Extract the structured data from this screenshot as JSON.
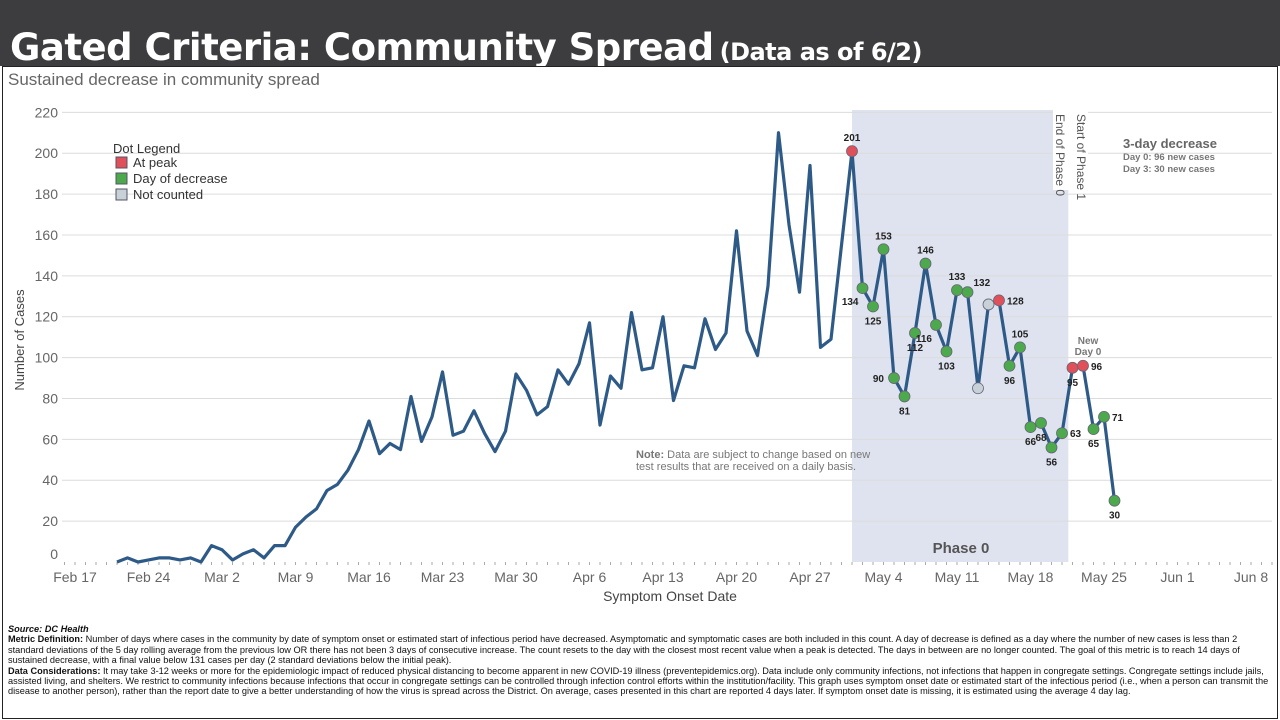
{
  "header": {
    "title": "Gated Criteria: Community Spread",
    "subtitle": "(Data as of 6/2)"
  },
  "chart_data": {
    "type": "line",
    "title": "Sustained decrease in community spread",
    "xlabel": "Symptom Onset Date",
    "ylabel": "Number of Cases",
    "ylim": [
      0,
      220
    ],
    "yticks": [
      0,
      20,
      40,
      60,
      80,
      100,
      120,
      140,
      160,
      180,
      200,
      220
    ],
    "start_date": "Feb 21",
    "xticks": [
      {
        "day": -4,
        "label": "Feb 17"
      },
      {
        "day": 3,
        "label": "Feb 24"
      },
      {
        "day": 10,
        "label": "Mar 2"
      },
      {
        "day": 17,
        "label": "Mar 9"
      },
      {
        "day": 24,
        "label": "Mar 16"
      },
      {
        "day": 31,
        "label": "Mar 23"
      },
      {
        "day": 38,
        "label": "Mar 30"
      },
      {
        "day": 45,
        "label": "Apr 6"
      },
      {
        "day": 52,
        "label": "Apr 13"
      },
      {
        "day": 59,
        "label": "Apr 20"
      },
      {
        "day": 66,
        "label": "Apr 27"
      },
      {
        "day": 73,
        "label": "May 4"
      },
      {
        "day": 80,
        "label": "May 11"
      },
      {
        "day": 87,
        "label": "May 18"
      },
      {
        "day": 94,
        "label": "May 25"
      },
      {
        "day": 101,
        "label": "Jun 1"
      },
      {
        "day": 108,
        "label": "Jun 8"
      }
    ],
    "grid": true,
    "series": [
      {
        "name": "Daily cases",
        "color": "#2e5a88",
        "values": [
          0,
          2,
          0,
          1,
          2,
          2,
          1,
          2,
          0,
          8,
          6,
          1,
          4,
          6,
          2,
          8,
          8,
          17,
          22,
          26,
          35,
          38,
          45,
          55,
          69,
          53,
          58,
          55,
          81,
          59,
          71,
          93,
          62,
          64,
          74,
          63,
          54,
          64,
          92,
          84,
          72,
          76,
          94,
          87,
          97,
          117,
          67,
          91,
          85,
          122,
          94,
          95,
          120,
          79,
          96,
          95,
          119,
          104,
          112,
          162,
          113,
          101,
          135,
          210,
          165,
          132,
          194,
          105,
          109,
          155,
          201,
          134,
          125,
          153,
          90,
          81,
          112,
          146,
          116,
          103,
          133,
          132,
          85,
          126,
          128,
          96,
          105,
          66,
          68,
          56,
          63,
          95,
          96,
          65,
          71,
          30
        ]
      }
    ],
    "markers": [
      {
        "day": 70,
        "value": 201,
        "type": "peak",
        "label": "201",
        "pos": "above"
      },
      {
        "day": 71,
        "value": 134,
        "type": "decrease",
        "label": "134",
        "pos": "belowleft"
      },
      {
        "day": 72,
        "value": 125,
        "type": "decrease",
        "label": "125",
        "pos": "below"
      },
      {
        "day": 73,
        "value": 153,
        "type": "decrease",
        "label": "153",
        "pos": "above"
      },
      {
        "day": 74,
        "value": 90,
        "type": "decrease",
        "label": "90",
        "pos": "left"
      },
      {
        "day": 75,
        "value": 81,
        "type": "decrease",
        "label": "81",
        "pos": "below"
      },
      {
        "day": 76,
        "value": 112,
        "type": "decrease",
        "label": "112",
        "pos": "below"
      },
      {
        "day": 77,
        "value": 146,
        "type": "decrease",
        "label": "146",
        "pos": "above"
      },
      {
        "day": 78,
        "value": 116,
        "type": "decrease",
        "label": "116",
        "pos": "belowleft"
      },
      {
        "day": 79,
        "value": 103,
        "type": "decrease",
        "label": "103",
        "pos": "below"
      },
      {
        "day": 80,
        "value": 133,
        "type": "decrease",
        "label": "133",
        "pos": "above"
      },
      {
        "day": 81,
        "value": 132,
        "type": "decrease",
        "label": "132",
        "pos": "aboveright"
      },
      {
        "day": 82,
        "value": 85,
        "type": "notcounted",
        "label": "",
        "pos": "none"
      },
      {
        "day": 83,
        "value": 126,
        "type": "notcounted",
        "label": "",
        "pos": "none"
      },
      {
        "day": 84,
        "value": 128,
        "type": "peak",
        "label": "128",
        "pos": "right"
      },
      {
        "day": 85,
        "value": 96,
        "type": "decrease",
        "label": "96",
        "pos": "below"
      },
      {
        "day": 86,
        "value": 105,
        "type": "decrease",
        "label": "105",
        "pos": "above"
      },
      {
        "day": 87,
        "value": 66,
        "type": "decrease",
        "label": "66",
        "pos": "below"
      },
      {
        "day": 88,
        "value": 68,
        "type": "decrease",
        "label": "68",
        "pos": "below"
      },
      {
        "day": 89,
        "value": 56,
        "type": "decrease",
        "label": "56",
        "pos": "below"
      },
      {
        "day": 90,
        "value": 63,
        "type": "decrease",
        "label": "63",
        "pos": "right"
      },
      {
        "day": 91,
        "value": 95,
        "type": "peak",
        "label": "95",
        "pos": "below"
      },
      {
        "day": 92,
        "value": 96,
        "type": "peak",
        "label": "96",
        "pos": "right"
      },
      {
        "day": 93,
        "value": 65,
        "type": "decrease",
        "label": "65",
        "pos": "below"
      },
      {
        "day": 94,
        "value": 71,
        "type": "decrease",
        "label": "71",
        "pos": "right"
      },
      {
        "day": 95,
        "value": 30,
        "type": "decrease",
        "label": "30",
        "pos": "below"
      }
    ],
    "marker_colors": {
      "peak": "#e0505a",
      "decrease": "#4caa4c",
      "notcounted": "#c8d0d8"
    },
    "legend": {
      "title": "Dot Legend",
      "placement": "top-left",
      "items": [
        {
          "type": "peak",
          "label": "At peak"
        },
        {
          "type": "decrease",
          "label": "Day of decrease"
        },
        {
          "type": "notcounted",
          "label": "Not counted"
        }
      ]
    },
    "phase_band": {
      "start_day": 70,
      "end_day": 90.6,
      "label": "Phase 0",
      "color": "#dfe3ef"
    },
    "phase_lines": [
      "End of Phase 0",
      "Start of Phase 1"
    ],
    "annotations": {
      "decrease_title": "3-day decrease",
      "decrease_day0": "Day 0: 96 new cases",
      "decrease_day3": "Day 3: 30 new cases",
      "new_day0_line1": "New",
      "new_day0_line2": "Day 0",
      "note_bold": "Note:",
      "note_line1": "Data are subject to change based on new",
      "note_line2": "test results that are received on a daily basis."
    }
  },
  "footer": {
    "source": "Source: DC Health",
    "metric_label": "Metric Definition:",
    "metric_text": "Number of days where cases in the community by date of symptom onset or estimated start of infectious period have decreased. Asymptomatic and symptomatic cases are both included in this count. A day of decrease is defined as a day where the number of new cases is less than 2 standard deviations of the 5 day rolling average from the previous low OR there has not been 3 days of consecutive increase. The count resets to the day with the closest most recent value when a peak is detected. The days in between are no longer counted. The goal of this metric is to reach 14 days of sustained decrease, with a final value below 131 cases per day (2 standard deviations below the initial peak).",
    "data_label": "Data Considerations:",
    "data_text": "It may take 3-12 weeks or more for the epidemiologic impact of reduced physical distancing to become apparent in new COVID-19 illness (preventepidemics.org). Data include only community infections, not infections that happen in congregate settings. Congregate settings include jails, assisted living, and shelters. We restrict to community infections because infections that occur in congregate settings can be controlled through infection control efforts within the institution/facility. This graph uses symptom onset date or estimated start of the infectious period (i.e., when a person can transmit the disease to another person), rather than the report date to give a better understanding of how the virus is spread across the District. On average, cases presented in this chart are reported 4 days later. If symptom onset date is missing, it is estimated using the average 4 day lag."
  }
}
